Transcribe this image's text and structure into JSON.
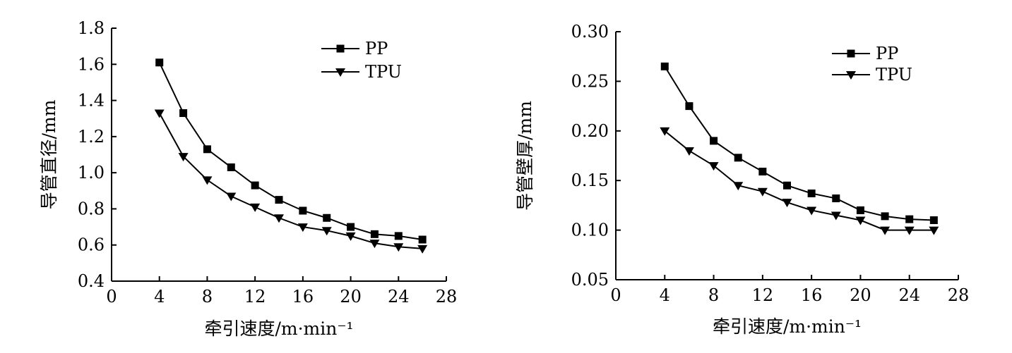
{
  "chart_data": [
    {
      "type": "line",
      "xlabel": "牵引速度/m·min⁻¹",
      "ylabel": "导管直径/mm",
      "xlim": [
        0,
        28
      ],
      "ylim": [
        0.4,
        1.8
      ],
      "x_ticks": [
        "0",
        "4",
        "8",
        "12",
        "16",
        "20",
        "24",
        "28"
      ],
      "y_ticks": [
        "0.4",
        "0.6",
        "0.8",
        "1.0",
        "1.2",
        "1.4",
        "1.6",
        "1.8"
      ],
      "grid": false,
      "legend": "top-right",
      "x": [
        4,
        6,
        8,
        10,
        12,
        14,
        16,
        18,
        20,
        22,
        24,
        26
      ],
      "series": [
        {
          "name": "PP",
          "marker": "square",
          "values": [
            1.61,
            1.33,
            1.13,
            1.03,
            0.93,
            0.85,
            0.79,
            0.75,
            0.7,
            0.66,
            0.65,
            0.63
          ]
        },
        {
          "name": "TPU",
          "marker": "triangle-down",
          "values": [
            1.33,
            1.09,
            0.96,
            0.87,
            0.81,
            0.75,
            0.7,
            0.68,
            0.65,
            0.61,
            0.59,
            0.58
          ]
        }
      ]
    },
    {
      "type": "line",
      "xlabel": "牵引速度/m·min⁻¹",
      "ylabel": "导管壁厚/mm",
      "xlim": [
        0,
        28
      ],
      "ylim": [
        0.05,
        0.3
      ],
      "x_ticks": [
        "0",
        "4",
        "8",
        "12",
        "16",
        "20",
        "24",
        "28"
      ],
      "y_ticks": [
        "0.05",
        "0.10",
        "0.15",
        "0.20",
        "0.25",
        "0.30"
      ],
      "grid": false,
      "legend": "top-right",
      "x": [
        4,
        6,
        8,
        10,
        12,
        14,
        16,
        18,
        20,
        22,
        24,
        26
      ],
      "series": [
        {
          "name": "PP",
          "marker": "square",
          "values": [
            0.265,
            0.225,
            0.19,
            0.173,
            0.159,
            0.145,
            0.137,
            0.132,
            0.12,
            0.114,
            0.111,
            0.11
          ]
        },
        {
          "name": "TPU",
          "marker": "triangle-down",
          "values": [
            0.2,
            0.18,
            0.165,
            0.145,
            0.139,
            0.128,
            0.12,
            0.115,
            0.11,
            0.1,
            0.1,
            0.1
          ]
        }
      ]
    }
  ]
}
